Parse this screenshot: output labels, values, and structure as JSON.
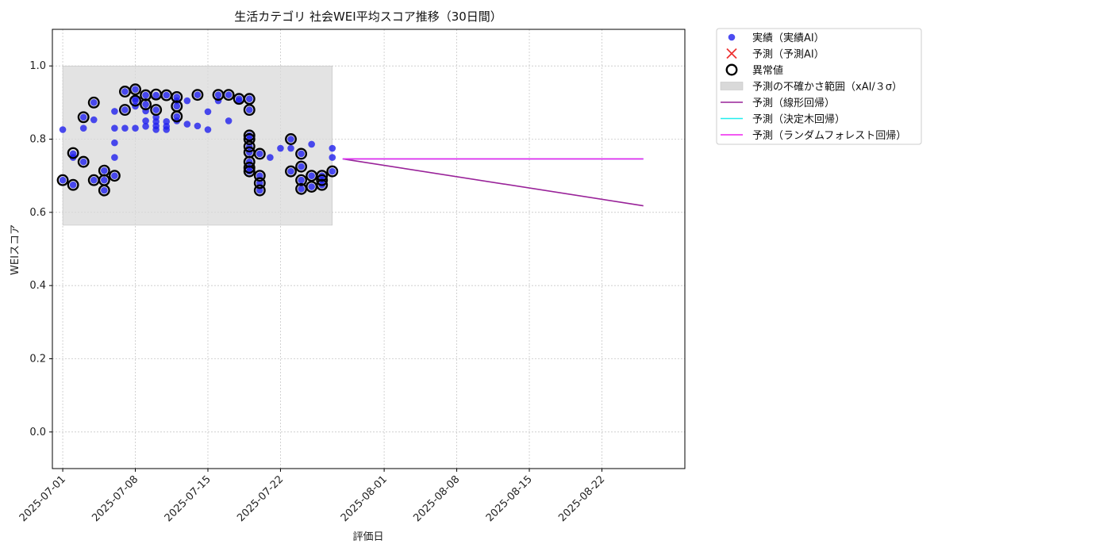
{
  "chart_data": {
    "type": "scatter",
    "title": "生活カテゴリ 社会WEI平均スコア推移（30日間）",
    "xlabel": "評価日",
    "ylabel": "WEIスコア",
    "ylim": [
      -0.1,
      1.1
    ],
    "xlim": [
      "2025-06-30",
      "2025-08-30"
    ],
    "y_ticks": [
      "0.0",
      "0.2",
      "0.4",
      "0.6",
      "0.8",
      "1.0"
    ],
    "x_ticks": [
      "2025-07-01",
      "2025-07-08",
      "2025-07-15",
      "2025-07-22",
      "2025-08-01",
      "2025-08-08",
      "2025-08-15",
      "2025-08-22"
    ],
    "grid": true,
    "legend_position": "outside-top-right",
    "uncertainty_band": {
      "x_start": "2025-07-01",
      "x_end": "2025-07-27",
      "y_low": 0.565,
      "y_high": 1.0,
      "color": "#d9d9d9"
    },
    "series": [
      {
        "name": "実績（実績AI）",
        "kind": "scatter",
        "color": "#1f1fee",
        "points": [
          [
            "2025-07-01",
            0.826
          ],
          [
            "2025-07-01",
            0.688
          ],
          [
            "2025-07-02",
            0.75
          ],
          [
            "2025-07-02",
            0.76
          ],
          [
            "2025-07-02",
            0.675
          ],
          [
            "2025-07-03",
            0.83
          ],
          [
            "2025-07-03",
            0.86
          ],
          [
            "2025-07-03",
            0.738
          ],
          [
            "2025-07-04",
            0.853
          ],
          [
            "2025-07-04",
            0.9
          ],
          [
            "2025-07-04",
            0.688
          ],
          [
            "2025-07-05",
            0.714
          ],
          [
            "2025-07-05",
            0.688
          ],
          [
            "2025-07-05",
            0.66
          ],
          [
            "2025-07-06",
            0.79
          ],
          [
            "2025-07-06",
            0.75
          ],
          [
            "2025-07-06",
            0.7
          ],
          [
            "2025-07-06",
            0.876
          ],
          [
            "2025-07-06",
            0.83
          ],
          [
            "2025-07-07",
            0.83
          ],
          [
            "2025-07-07",
            0.93
          ],
          [
            "2025-07-07",
            0.88
          ],
          [
            "2025-07-08",
            0.936
          ],
          [
            "2025-07-08",
            0.905
          ],
          [
            "2025-07-08",
            0.89
          ],
          [
            "2025-07-08",
            0.83
          ],
          [
            "2025-07-08",
            0.91
          ],
          [
            "2025-07-09",
            0.85
          ],
          [
            "2025-07-09",
            0.835
          ],
          [
            "2025-07-09",
            0.895
          ],
          [
            "2025-07-09",
            0.92
          ],
          [
            "2025-07-09",
            0.877
          ],
          [
            "2025-07-10",
            0.92
          ],
          [
            "2025-07-10",
            0.88
          ],
          [
            "2025-07-10",
            0.848
          ],
          [
            "2025-07-10",
            0.836
          ],
          [
            "2025-07-10",
            0.86
          ],
          [
            "2025-07-10",
            0.826
          ],
          [
            "2025-07-11",
            0.835
          ],
          [
            "2025-07-11",
            0.826
          ],
          [
            "2025-07-11",
            0.848
          ],
          [
            "2025-07-11",
            0.92
          ],
          [
            "2025-07-12",
            0.915
          ],
          [
            "2025-07-12",
            0.905
          ],
          [
            "2025-07-12",
            0.85
          ],
          [
            "2025-07-12",
            0.89
          ],
          [
            "2025-07-12",
            0.862
          ],
          [
            "2025-07-13",
            0.905
          ],
          [
            "2025-07-13",
            0.841
          ],
          [
            "2025-07-14",
            0.921
          ],
          [
            "2025-07-14",
            0.836
          ],
          [
            "2025-07-15",
            0.875
          ],
          [
            "2025-07-15",
            0.826
          ],
          [
            "2025-07-16",
            0.921
          ],
          [
            "2025-07-16",
            0.905
          ],
          [
            "2025-07-17",
            0.921
          ],
          [
            "2025-07-17",
            0.85
          ],
          [
            "2025-07-18",
            0.91
          ],
          [
            "2025-07-18",
            0.905
          ],
          [
            "2025-07-19",
            0.91
          ],
          [
            "2025-07-19",
            0.88
          ],
          [
            "2025-07-19",
            0.81
          ],
          [
            "2025-07-19",
            0.8
          ],
          [
            "2025-07-19",
            0.78
          ],
          [
            "2025-07-19",
            0.764
          ],
          [
            "2025-07-19",
            0.738
          ],
          [
            "2025-07-19",
            0.722
          ],
          [
            "2025-07-19",
            0.712
          ],
          [
            "2025-07-20",
            0.76
          ],
          [
            "2025-07-20",
            0.68
          ],
          [
            "2025-07-20",
            0.7
          ],
          [
            "2025-07-20",
            0.66
          ],
          [
            "2025-07-21",
            0.75
          ],
          [
            "2025-07-22",
            0.775
          ],
          [
            "2025-07-23",
            0.8
          ],
          [
            "2025-07-23",
            0.775
          ],
          [
            "2025-07-23",
            0.712
          ],
          [
            "2025-07-24",
            0.76
          ],
          [
            "2025-07-24",
            0.725
          ],
          [
            "2025-07-24",
            0.688
          ],
          [
            "2025-07-24",
            0.664
          ],
          [
            "2025-07-25",
            0.786
          ],
          [
            "2025-07-25",
            0.7
          ],
          [
            "2025-07-25",
            0.67
          ],
          [
            "2025-07-26",
            0.688
          ],
          [
            "2025-07-26",
            0.675
          ],
          [
            "2025-07-26",
            0.7
          ],
          [
            "2025-07-27",
            0.775
          ],
          [
            "2025-07-27",
            0.75
          ],
          [
            "2025-07-27",
            0.712
          ]
        ]
      },
      {
        "name": "予測（予測AI）",
        "kind": "x-marker",
        "color": "#ee3333",
        "points": []
      },
      {
        "name": "異常値",
        "kind": "hollow-circle",
        "color": "#000000",
        "points": [
          [
            "2025-07-01",
            0.688
          ],
          [
            "2025-07-02",
            0.762
          ],
          [
            "2025-07-02",
            0.675
          ],
          [
            "2025-07-03",
            0.86
          ],
          [
            "2025-07-03",
            0.738
          ],
          [
            "2025-07-04",
            0.9
          ],
          [
            "2025-07-04",
            0.688
          ],
          [
            "2025-07-05",
            0.714
          ],
          [
            "2025-07-05",
            0.688
          ],
          [
            "2025-07-05",
            0.66
          ],
          [
            "2025-07-06",
            0.7
          ],
          [
            "2025-07-07",
            0.93
          ],
          [
            "2025-07-07",
            0.88
          ],
          [
            "2025-07-08",
            0.936
          ],
          [
            "2025-07-08",
            0.905
          ],
          [
            "2025-07-09",
            0.895
          ],
          [
            "2025-07-09",
            0.92
          ],
          [
            "2025-07-10",
            0.922
          ],
          [
            "2025-07-10",
            0.88
          ],
          [
            "2025-07-11",
            0.92
          ],
          [
            "2025-07-12",
            0.915
          ],
          [
            "2025-07-12",
            0.89
          ],
          [
            "2025-07-12",
            0.862
          ],
          [
            "2025-07-14",
            0.921
          ],
          [
            "2025-07-16",
            0.921
          ],
          [
            "2025-07-17",
            0.921
          ],
          [
            "2025-07-18",
            0.91
          ],
          [
            "2025-07-19",
            0.91
          ],
          [
            "2025-07-19",
            0.88
          ],
          [
            "2025-07-19",
            0.81
          ],
          [
            "2025-07-19",
            0.8
          ],
          [
            "2025-07-19",
            0.78
          ],
          [
            "2025-07-19",
            0.764
          ],
          [
            "2025-07-19",
            0.738
          ],
          [
            "2025-07-19",
            0.722
          ],
          [
            "2025-07-19",
            0.712
          ],
          [
            "2025-07-20",
            0.76
          ],
          [
            "2025-07-20",
            0.68
          ],
          [
            "2025-07-20",
            0.7
          ],
          [
            "2025-07-20",
            0.66
          ],
          [
            "2025-07-23",
            0.8
          ],
          [
            "2025-07-23",
            0.712
          ],
          [
            "2025-07-24",
            0.76
          ],
          [
            "2025-07-24",
            0.725
          ],
          [
            "2025-07-24",
            0.688
          ],
          [
            "2025-07-24",
            0.664
          ],
          [
            "2025-07-25",
            0.7
          ],
          [
            "2025-07-25",
            0.67
          ],
          [
            "2025-07-26",
            0.688
          ],
          [
            "2025-07-26",
            0.675
          ],
          [
            "2025-07-26",
            0.7
          ],
          [
            "2025-07-27",
            0.712
          ]
        ]
      },
      {
        "name": "予測の不確かさ範囲（xAI/３σ）",
        "kind": "band",
        "color": "#d9d9d9"
      },
      {
        "name": "予測（線形回帰）",
        "kind": "line",
        "color": "#992299",
        "points": [
          [
            "2025-07-28",
            0.746
          ],
          [
            "2025-08-26",
            0.618
          ]
        ]
      },
      {
        "name": "予測（決定木回帰）",
        "kind": "line",
        "color": "#22eeee",
        "points": [
          [
            "2025-07-28",
            0.746
          ],
          [
            "2025-08-26",
            0.746
          ]
        ]
      },
      {
        "name": "予測（ランダムフォレスト回帰）",
        "kind": "line",
        "color": "#ee22ee",
        "points": [
          [
            "2025-07-28",
            0.746
          ],
          [
            "2025-08-26",
            0.746
          ]
        ]
      }
    ]
  }
}
